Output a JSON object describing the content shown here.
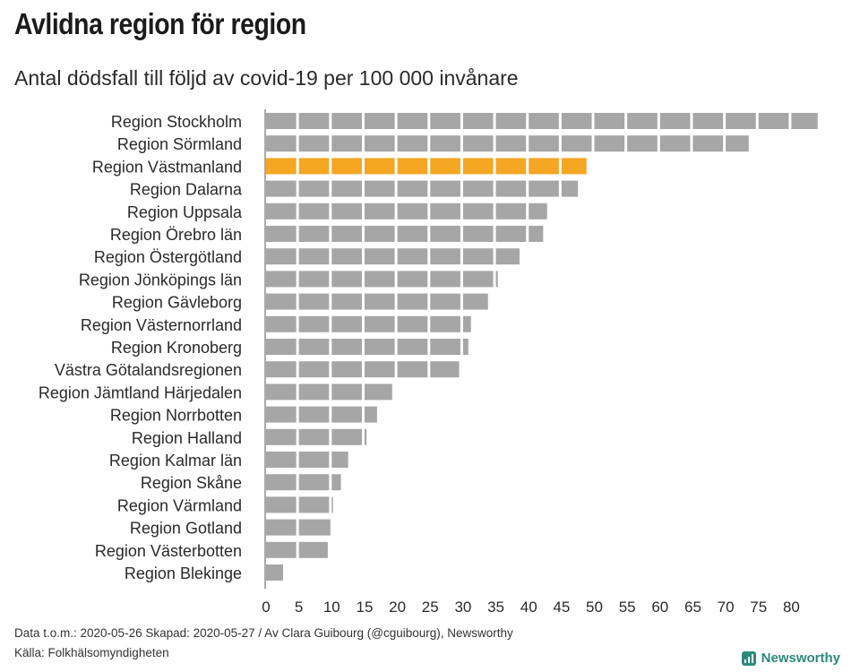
{
  "title": "Avlidna region för region",
  "subtitle": "Antal dödsfall till följd av covid-19 per 100 000 invånare",
  "footer": {
    "line1": "Data t.o.m.: 2020-05-26 Skapad: 2020-05-27 / Av Clara Guibourg (@cguibourg), Newsworthy",
    "line2": "Källa: Folkhälsomyndigheten"
  },
  "brand": {
    "name": "Newsworthy",
    "icon": "bar-chart-icon",
    "color": "#2d8a7a"
  },
  "colors": {
    "bar": "#a6a6a6",
    "highlight": "#f5a623"
  },
  "chart_data": {
    "type": "bar",
    "orientation": "horizontal",
    "title": "Avlidna region för region",
    "subtitle": "Antal dödsfall till följd av covid-19 per 100 000 invånare",
    "categories": [
      "Region Stockholm",
      "Region Sörmland",
      "Region Västmanland",
      "Region Dalarna",
      "Region Uppsala",
      "Region Örebro län",
      "Region Östergötland",
      "Region Jönköpings län",
      "Region Gävleborg",
      "Region Västernorrland",
      "Region Kronoberg",
      "Västra Götalandsregionen",
      "Region Jämtland Härjedalen",
      "Region Norrbotten",
      "Region Halland",
      "Region Kalmar län",
      "Region Skåne",
      "Region Värmland",
      "Region Gotland",
      "Region Västerbotten",
      "Region Blekinge"
    ],
    "values": [
      84,
      73.5,
      48.8,
      47.5,
      42.8,
      42.2,
      38.6,
      35.3,
      33.8,
      31.2,
      30.8,
      29.4,
      19.2,
      16.9,
      15.3,
      12.5,
      11.4,
      10.2,
      9.8,
      9.4,
      2.6
    ],
    "highlight": "Region Västmanland",
    "xticks": [
      0,
      5,
      10,
      15,
      20,
      25,
      30,
      35,
      40,
      45,
      50,
      55,
      60,
      65,
      70,
      75,
      80
    ],
    "xlim": [
      0,
      85
    ],
    "segment": 5,
    "grid": false,
    "legend": "none"
  }
}
